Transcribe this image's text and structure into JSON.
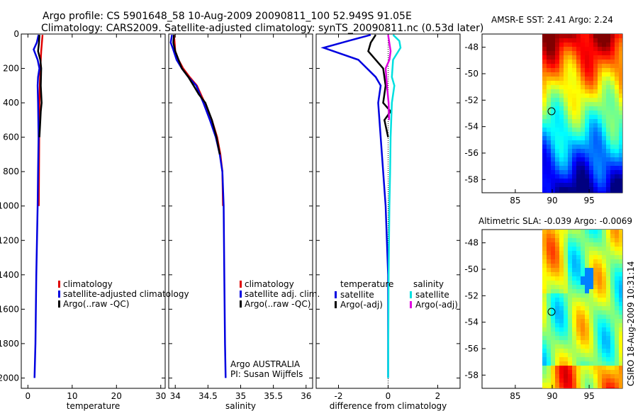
{
  "title": {
    "line1": "Argo profile: CS 5901648_58 10-Aug-2009 20090811_100 52.949S 91.05E",
    "line2": "Climatology: CARS2009. Satellite-adjusted climatology: synTS_20090811.nc (0.53d later)"
  },
  "chart_data": [
    {
      "type": "line",
      "panel": "temperature",
      "xlabel": "temperature",
      "ylabel": "",
      "xlim": [
        -1.5,
        31
      ],
      "ylim": [
        2060,
        0
      ],
      "y_reversed": true,
      "xticks": [
        0,
        10,
        20,
        30
      ],
      "yticks": [
        0,
        200,
        400,
        600,
        800,
        1000,
        1200,
        1400,
        1600,
        1800,
        2000
      ],
      "legend": [
        "climatology",
        "satellite-adjusted climatology",
        "Argo(..raw -QC)"
      ],
      "series": [
        {
          "name": "climatology",
          "color": "#e00000",
          "x": [
            3.3,
            3.0,
            2.8,
            2.7,
            2.6,
            2.55,
            2.5,
            2.45
          ],
          "y": [
            5,
            100,
            200,
            300,
            400,
            600,
            800,
            1000
          ]
        },
        {
          "name": "satellite-adjusted climatology",
          "color": "#0000e0",
          "x": [
            2.4,
            2.0,
            1.3,
            2.2,
            2.6,
            2.3,
            2.2,
            2.3,
            2.4,
            2.3,
            2.2,
            1.9,
            1.7,
            1.5
          ],
          "y": [
            5,
            50,
            90,
            150,
            200,
            250,
            300,
            400,
            600,
            800,
            1000,
            1400,
            1800,
            2000
          ]
        },
        {
          "name": "Argo(..raw -QC)",
          "color": "#000000",
          "x": [
            2.6,
            2.5,
            2.3,
            2.8,
            3.0,
            2.9,
            3.1,
            2.9,
            2.8,
            2.6
          ],
          "y": [
            5,
            50,
            100,
            150,
            200,
            300,
            400,
            450,
            500,
            600
          ]
        }
      ]
    },
    {
      "type": "line",
      "panel": "salinity",
      "xlabel": "salinity",
      "ylabel": "",
      "xlim": [
        33.9,
        36.1
      ],
      "ylim": [
        2060,
        0
      ],
      "y_reversed": true,
      "xticks": [
        34,
        34.5,
        35,
        35.5,
        36
      ],
      "legend": [
        "climatology",
        "satellite adj. clim.",
        "Argo(..raw -QC)"
      ],
      "annotations": [
        "Argo AUSTRALIA",
        "PI: Susan Wijffels"
      ],
      "series": [
        {
          "name": "climatology",
          "color": "#e00000",
          "x": [
            33.98,
            33.99,
            34.0,
            34.05,
            34.12,
            34.22,
            34.33,
            34.45,
            34.56,
            34.64,
            34.69,
            34.72,
            34.73
          ],
          "y": [
            5,
            50,
            100,
            150,
            200,
            250,
            300,
            400,
            500,
            600,
            700,
            800,
            1000
          ]
        },
        {
          "name": "satellite adj. clim.",
          "color": "#0000e0",
          "x": [
            33.95,
            33.93,
            33.96,
            34.02,
            34.1,
            34.2,
            34.32,
            34.43,
            34.53,
            34.62,
            34.68,
            34.72,
            34.74,
            34.75,
            34.76,
            34.77
          ],
          "y": [
            5,
            50,
            80,
            150,
            200,
            250,
            300,
            400,
            500,
            600,
            700,
            800,
            1000,
            1400,
            1800,
            2000
          ]
        },
        {
          "name": "Argo(..raw -QC)",
          "color": "#000000",
          "x": [
            33.98,
            33.97,
            34.0,
            34.1,
            34.2,
            34.28,
            34.36,
            34.46,
            34.56,
            34.63,
            34.68
          ],
          "y": [
            5,
            50,
            100,
            200,
            250,
            300,
            350,
            400,
            500,
            600,
            700
          ]
        }
      ]
    },
    {
      "type": "line",
      "panel": "difference",
      "xlabel": "difference from climatology",
      "ylabel": "",
      "xlim": [
        -2.9,
        2.9
      ],
      "ylim": [
        2060,
        0
      ],
      "y_reversed": true,
      "xticks": [
        -2,
        0,
        2
      ],
      "legend_groups": [
        {
          "title": "temperature",
          "entries": [
            "satellite",
            "Argo(-adj)"
          ]
        },
        {
          "title": "salinity",
          "entries": [
            "satellite",
            "Argo(-adj)"
          ]
        }
      ],
      "series": [
        {
          "name": "satellite",
          "group": "temperature",
          "color": "#0000e0",
          "x": [
            -0.7,
            -1.6,
            -2.6,
            -1.2,
            -0.5,
            -0.3,
            -0.4,
            -0.3,
            -0.2,
            -0.1,
            0.0,
            0.0
          ],
          "y": [
            5,
            40,
            80,
            150,
            250,
            300,
            400,
            600,
            800,
            1000,
            1400,
            2000
          ]
        },
        {
          "name": "Argo(-adj)",
          "group": "temperature",
          "color": "#000000",
          "x": [
            -0.5,
            -0.7,
            -0.8,
            -0.5,
            -0.2,
            -0.1,
            -0.2,
            0.1,
            -0.15,
            0.0
          ],
          "y": [
            5,
            50,
            100,
            150,
            200,
            300,
            400,
            450,
            500,
            600
          ]
        },
        {
          "name": "satellite",
          "group": "salinity",
          "color": "#00e0e0",
          "x": [
            0.2,
            0.45,
            0.5,
            0.2,
            0.15,
            0.25,
            0.15,
            0.1,
            0.08,
            0.05,
            0.02,
            0.0
          ],
          "y": [
            5,
            40,
            80,
            150,
            250,
            300,
            400,
            600,
            800,
            1000,
            1400,
            2000
          ]
        },
        {
          "name": "Argo(-adj)",
          "group": "salinity",
          "color": "#e000e0",
          "x": [
            0.0,
            0.1,
            0.05,
            -0.1,
            -0.05,
            0.02,
            0.04
          ],
          "y": [
            5,
            100,
            150,
            200,
            300,
            400,
            500
          ]
        }
      ]
    }
  ],
  "maps": [
    {
      "title": "AMSR-E SST: 2.41 Argo: 2.24",
      "xticks": [
        85,
        90,
        95
      ],
      "yticks": [
        -48,
        -50,
        -52,
        -54,
        -56,
        -58
      ]
    },
    {
      "title": "Altimetric SLA: -0.039 Argo: -0.0069",
      "xticks": [
        85,
        90,
        95
      ],
      "yticks": [
        -48,
        -50,
        -52,
        -54,
        -56,
        -58
      ]
    }
  ],
  "side_label": "CSIRO 18-Aug-2009 10:31:14"
}
